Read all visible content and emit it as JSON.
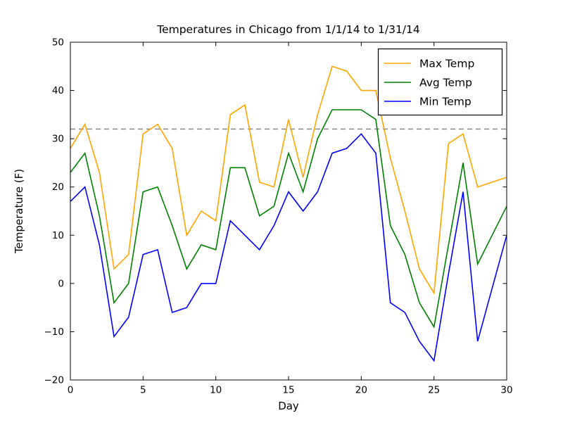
{
  "figure": {
    "title": "Temperatures in Chicago from 1/1/14 to 1/31/14",
    "xlabel": "Day",
    "ylabel": "Temperature (F)",
    "background_color": "#ffffff",
    "frame_color": "#000000"
  },
  "legend": {
    "position": "upper right",
    "entries": [
      "Max Temp",
      "Avg Temp",
      "Min Temp"
    ]
  },
  "chart_data": {
    "type": "line",
    "title": "Temperatures in Chicago from 1/1/14 to 1/31/14",
    "xlabel": "Day",
    "ylabel": "Temperature (F)",
    "xlim": [
      0,
      30
    ],
    "ylim": [
      -20,
      50
    ],
    "xticks": [
      0,
      5,
      10,
      15,
      20,
      25,
      30
    ],
    "yticks": [
      -20,
      -10,
      0,
      10,
      20,
      30,
      40,
      50
    ],
    "grid": false,
    "legend_position": "upper right",
    "x": [
      0,
      1,
      2,
      3,
      4,
      5,
      6,
      7,
      8,
      9,
      10,
      11,
      12,
      13,
      14,
      15,
      16,
      17,
      18,
      19,
      20,
      21,
      22,
      23,
      24,
      25,
      26,
      27,
      28,
      29,
      30
    ],
    "series": [
      {
        "name": "Max Temp",
        "color": "#ffa500",
        "values": [
          28,
          33,
          23,
          3,
          6,
          31,
          33,
          28,
          10,
          15,
          13,
          35,
          37,
          21,
          20,
          34,
          22,
          35,
          45,
          44,
          40,
          40,
          26,
          15,
          3,
          -2,
          29,
          31,
          20,
          21,
          22
        ]
      },
      {
        "name": "Avg Temp",
        "color": "#008000",
        "values": [
          23,
          27,
          14,
          -4,
          0,
          19,
          20,
          12,
          3,
          8,
          7,
          24,
          24,
          14,
          16,
          27,
          19,
          30,
          36,
          36,
          36,
          34,
          12,
          6,
          -4,
          -9,
          8,
          25,
          4,
          10,
          16
        ]
      },
      {
        "name": "Min Temp",
        "color": "#0000ff",
        "values": [
          17,
          20,
          8,
          -11,
          -7,
          6,
          7,
          -6,
          -5,
          0,
          0,
          13,
          10,
          7,
          12,
          19,
          15,
          19,
          27,
          28,
          31,
          27,
          -4,
          -6,
          -12,
          -16,
          2,
          19,
          -12,
          -1,
          10
        ]
      }
    ],
    "reference_line": {
      "y": 32,
      "style": "dashed",
      "color": "#808080"
    }
  }
}
